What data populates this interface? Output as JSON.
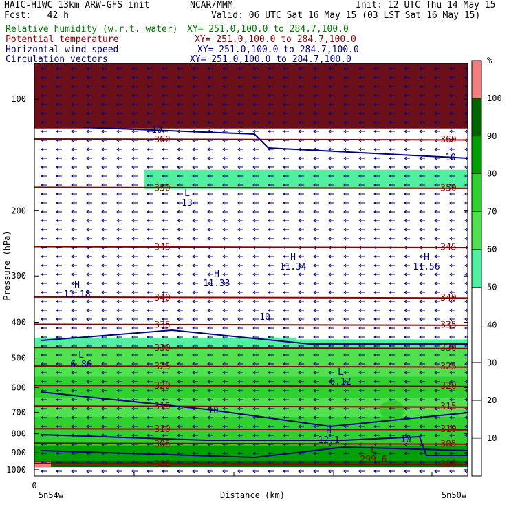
{
  "header": {
    "left1": "HAIC-HIWC 13km ARW-GFS init",
    "center1": "NCAR/MMM",
    "init": "Init: 12 UTC Thu 14 May 15",
    "fcst": "Fcst:   42 h",
    "valid": "Valid: 06 UTC Sat 16 May 15 (03 LST Sat 16 May 15)"
  },
  "fields": [
    {
      "name": "Relative humidity (w.r.t. water)",
      "xy": "XY= 251.0,100.0 to 284.7,100.0",
      "color": "#007a00"
    },
    {
      "name": "Potential temperature",
      "xy": "XY= 251.0,100.0 to 284.7,100.0",
      "color": "#8b0000"
    },
    {
      "name": "Horizontal wind speed",
      "xy": "XY= 251.0,100.0 to 284.7,100.0",
      "color": "#000080"
    },
    {
      "name": "Circulation vectors",
      "xy": "XY= 251.0,100.0 to 284.7,100.0",
      "color": "#000080"
    }
  ],
  "chart_data": {
    "type": "heatmap",
    "title": "",
    "xlabel": "Distance (km)",
    "ylabel": "Pressure (hPa)",
    "x_tick_zero": "0",
    "x_end_labels": [
      "5n54w",
      "5n50w"
    ],
    "y_ticks": [
      100,
      200,
      300,
      400,
      500,
      600,
      700,
      800,
      900,
      1000
    ],
    "y_log_scale": true,
    "ylim": [
      80,
      1040
    ],
    "colorbar": {
      "unit": "%",
      "levels": [
        10,
        20,
        30,
        40,
        50,
        60,
        70,
        80,
        90,
        100
      ],
      "colors": [
        "#ffffff",
        "#ffffff",
        "#ffffff",
        "#ffffff",
        "#ffffff",
        "#50f0a0",
        "#50e050",
        "#30d030",
        "#00a000",
        "#006400",
        "#f08080"
      ]
    },
    "theta_contours": [
      {
        "label": "360",
        "p": 128
      },
      {
        "label": "350",
        "p": 173
      },
      {
        "label": "345",
        "p": 250
      },
      {
        "label": "340",
        "p": 342
      },
      {
        "label": "335",
        "p": 405
      },
      {
        "label": "330",
        "p": 468
      },
      {
        "label": "325",
        "p": 525
      },
      {
        "label": "320",
        "p": 592
      },
      {
        "label": "315",
        "p": 673
      },
      {
        "label": "310",
        "p": 775
      },
      {
        "label": "305",
        "p": 848
      },
      {
        "label": "300",
        "p": 962
      }
    ],
    "annotations": [
      {
        "type": "L",
        "value": "13"
      },
      {
        "type": "H",
        "value": "11.18"
      },
      {
        "type": "H",
        "value": "11.33"
      },
      {
        "type": "H",
        "value": "11.34"
      },
      {
        "type": "H",
        "value": "11.56"
      },
      {
        "type": "L",
        "value": "6.86"
      },
      {
        "type": "L",
        "value": "6.12"
      },
      {
        "type": "H",
        "value": "12.1"
      },
      {
        "type": "L",
        "value": "299.6"
      }
    ],
    "wind_contour_label": "10"
  }
}
